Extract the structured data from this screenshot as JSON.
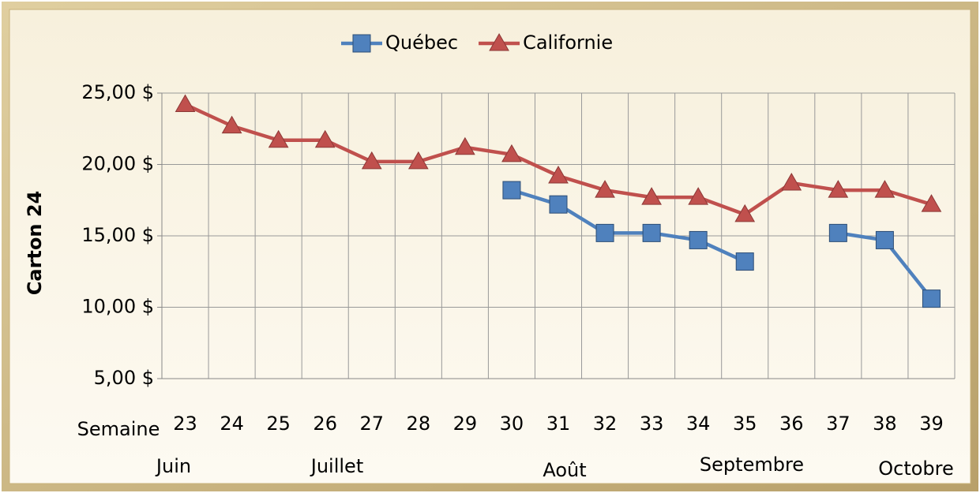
{
  "chart_data": {
    "type": "line",
    "y_label": "Carton 24",
    "x_label": "Semaine",
    "categories": [
      "23",
      "24",
      "25",
      "26",
      "27",
      "28",
      "29",
      "30",
      "31",
      "32",
      "33",
      "34",
      "35",
      "36",
      "37",
      "38",
      "39"
    ],
    "series": [
      {
        "name": "Québec",
        "color": "#4f81bd",
        "marker": "square",
        "values": [
          null,
          null,
          null,
          null,
          null,
          null,
          null,
          18.2,
          17.2,
          15.2,
          15.2,
          14.7,
          13.2,
          null,
          15.2,
          14.7,
          10.6
        ]
      },
      {
        "name": "Californie",
        "color": "#c0504d",
        "marker": "triangle",
        "values": [
          24.2,
          22.7,
          21.7,
          21.7,
          20.2,
          20.2,
          21.2,
          20.7,
          19.2,
          18.2,
          17.7,
          17.7,
          16.5,
          18.7,
          18.2,
          18.2,
          17.2
        ]
      }
    ],
    "ylim": [
      5,
      25
    ],
    "yticks": [
      {
        "value": 5,
        "label": "5,00 $"
      },
      {
        "value": 10,
        "label": "10,00 $"
      },
      {
        "value": 15,
        "label": "15,00 $"
      },
      {
        "value": 20,
        "label": "20,00 $"
      },
      {
        "value": 25,
        "label": "25,00 $"
      }
    ],
    "grid": true,
    "legend": "top",
    "month_labels": [
      "Juin",
      "Juillet",
      "Août",
      "Septembre",
      "Octobre"
    ]
  }
}
